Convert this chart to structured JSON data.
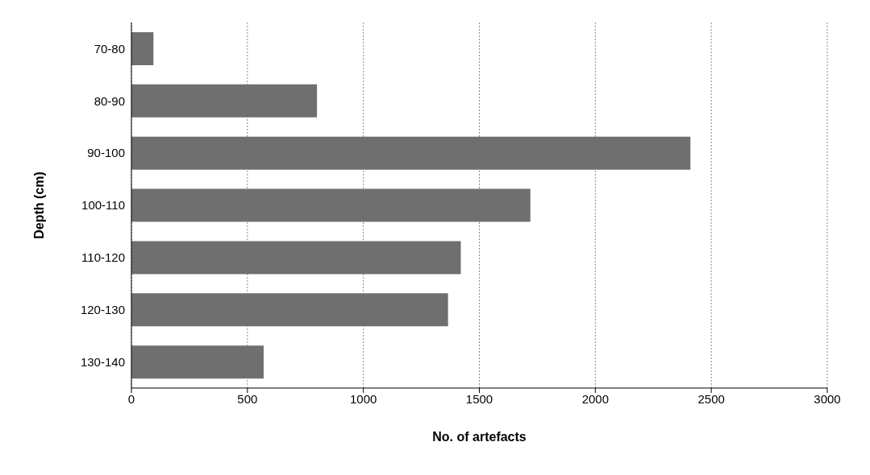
{
  "chart_data": {
    "type": "bar",
    "orientation": "horizontal",
    "xlabel": "No. of artefacts",
    "ylabel": "Depth (cm)",
    "categories": [
      "70-80",
      "80-90",
      "90-100",
      "100-110",
      "110-120",
      "120-130",
      "130-140"
    ],
    "values": [
      95,
      800,
      2410,
      1720,
      1420,
      1365,
      570
    ],
    "color": "#6f6f6f",
    "xlim": [
      0,
      3000
    ],
    "xticks": [
      0,
      500,
      1000,
      1500,
      2000,
      2500,
      3000
    ],
    "grid": "x"
  }
}
